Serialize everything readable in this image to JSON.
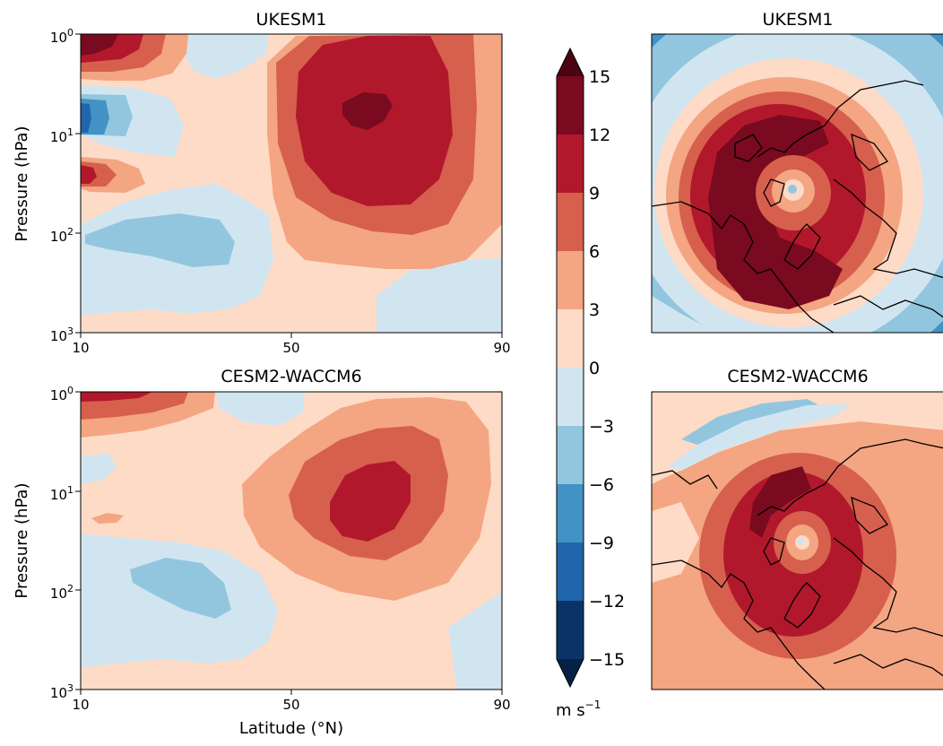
{
  "colors": {
    "levels_-15_-12": "#0a3468",
    "levels_-12_-9": "#2066ad",
    "levels_-9_-6": "#4392c5",
    "levels_-6_-3": "#92c6df",
    "levels_-3_0": "#d1e5f0",
    "levels_0_3": "#fddbc7",
    "levels_3_6": "#f4a582",
    "levels_6_9": "#d6604d",
    "levels_9_12": "#b2182b",
    "levels_12_15": "#7a0a1f",
    "above_15": "#4a0512",
    "below_-15": "#052246",
    "coastline": "#000000"
  },
  "chart_data": [
    {
      "type": "contourf",
      "title": "UKESM1",
      "ylabel": "Pressure (hPa)",
      "xlabel": "",
      "xlim": [
        10,
        90
      ],
      "xticks": [
        "10",
        "50",
        "90"
      ],
      "ylim": [
        1000,
        1
      ],
      "yscale": "log",
      "yticks": [
        "10",
        "10",
        "10",
        "10"
      ],
      "ytick_exps": [
        "0",
        "1",
        "2",
        "3"
      ],
      "features": [
        {
          "name": "polar-night-jet-max",
          "lat": 68,
          "pressure_hPa": 5,
          "value_range": [
            12,
            15
          ]
        },
        {
          "name": "upper-left-max",
          "lat": 12,
          "pressure_hPa": 1,
          "value_range": [
            12,
            15
          ]
        },
        {
          "name": "left-min",
          "lat": 12,
          "pressure_hPa": 7,
          "value_range": [
            -12,
            -9
          ]
        },
        {
          "name": "mid-negative-tongue",
          "lat": 25,
          "pressure_hPa": 100,
          "value_range": [
            -6,
            -3
          ]
        }
      ]
    },
    {
      "type": "contourf",
      "title": "CESM2-WACCM6",
      "ylabel": "Pressure (hPa)",
      "xlabel": "Latitude (°N)",
      "xlim": [
        10,
        90
      ],
      "xticks": [
        "10",
        "50",
        "90"
      ],
      "ylim": [
        1000,
        1
      ],
      "yscale": "log",
      "yticks": [
        "10",
        "10",
        "10",
        "10"
      ],
      "ytick_exps": [
        "0",
        "1",
        "2",
        "3"
      ],
      "features": [
        {
          "name": "polar-night-jet-max",
          "lat": 65,
          "pressure_hPa": 10,
          "value_range": [
            9,
            12
          ]
        },
        {
          "name": "lower-negative",
          "lat": 30,
          "pressure_hPa": 100,
          "value_range": [
            -6,
            -3
          ]
        }
      ]
    },
    {
      "type": "polar-map",
      "title": "UKESM1",
      "projection": "north-polar-stereographic",
      "max_range": [
        12,
        15
      ]
    },
    {
      "type": "polar-map",
      "title": "CESM2-WACCM6",
      "projection": "north-polar-stereographic",
      "max_range": [
        9,
        12
      ]
    }
  ],
  "colorbar": {
    "ticks": [
      "15",
      "12",
      "9",
      "6",
      "3",
      "0",
      "−3",
      "−6",
      "−9",
      "−12",
      "−15"
    ],
    "unit_base": "m s",
    "unit_exp": "−1"
  }
}
